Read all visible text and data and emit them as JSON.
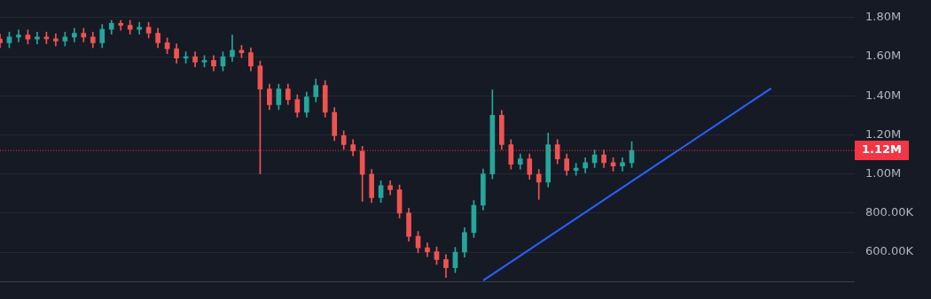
{
  "chart_data": {
    "type": "candlestick",
    "categories": [
      null,
      null,
      null,
      null,
      null,
      null,
      null,
      null,
      null,
      null,
      null,
      null,
      null,
      null,
      null,
      null,
      null,
      null,
      null,
      null,
      null,
      null,
      null,
      null,
      null,
      null,
      null,
      null,
      null,
      null,
      null,
      null,
      null,
      null,
      null,
      null,
      null,
      null,
      null,
      null,
      null,
      null,
      null,
      null,
      null,
      null,
      null,
      null,
      null,
      null,
      null,
      null,
      null,
      null,
      null,
      null,
      null,
      null,
      null,
      null,
      null,
      null,
      null,
      null,
      null,
      null,
      null,
      null,
      null,
      null,
      null,
      null,
      null,
      null,
      null,
      null,
      null,
      null,
      null,
      null,
      null,
      null,
      null,
      null,
      null,
      null,
      null,
      null,
      null,
      null,
      null,
      null,
      null
    ],
    "ohlc": [
      [
        1690000,
        1715000,
        1646000,
        1671000
      ],
      [
        1671000,
        1725000,
        1646000,
        1700000
      ],
      [
        1700000,
        1736000,
        1675000,
        1711000
      ],
      [
        1711000,
        1736000,
        1665000,
        1690000
      ],
      [
        1690000,
        1725000,
        1665000,
        1700000
      ],
      [
        1700000,
        1725000,
        1666000,
        1691000
      ],
      [
        1691000,
        1716000,
        1655000,
        1680000
      ],
      [
        1680000,
        1725000,
        1655000,
        1700000
      ],
      [
        1700000,
        1745000,
        1675000,
        1720000
      ],
      [
        1720000,
        1745000,
        1675000,
        1700000
      ],
      [
        1700000,
        1725000,
        1646000,
        1671000
      ],
      [
        1671000,
        1765000,
        1646000,
        1740000
      ],
      [
        1740000,
        1785000,
        1715000,
        1770000
      ],
      [
        1770000,
        1785000,
        1735000,
        1760000
      ],
      [
        1760000,
        1785000,
        1715000,
        1740000
      ],
      [
        1740000,
        1775000,
        1715000,
        1750000
      ],
      [
        1750000,
        1775000,
        1695000,
        1720000
      ],
      [
        1720000,
        1745000,
        1646000,
        1671000
      ],
      [
        1671000,
        1696000,
        1615000,
        1640000
      ],
      [
        1640000,
        1665000,
        1567000,
        1592000
      ],
      [
        1592000,
        1625000,
        1567000,
        1600000
      ],
      [
        1600000,
        1625000,
        1547000,
        1572000
      ],
      [
        1572000,
        1605000,
        1547000,
        1580000
      ],
      [
        1580000,
        1605000,
        1527000,
        1552000
      ],
      [
        1552000,
        1625000,
        1527000,
        1600000
      ],
      [
        1600000,
        1710000,
        1575000,
        1632000
      ],
      [
        1632000,
        1657000,
        1595000,
        1620000
      ],
      [
        1620000,
        1645000,
        1527000,
        1552000
      ],
      [
        1552000,
        1577000,
        1000000,
        1434000
      ],
      [
        1434000,
        1459000,
        1329000,
        1354000
      ],
      [
        1354000,
        1459000,
        1329000,
        1434000
      ],
      [
        1434000,
        1459000,
        1355000,
        1380000
      ],
      [
        1380000,
        1405000,
        1290000,
        1315000
      ],
      [
        1315000,
        1419000,
        1290000,
        1394000
      ],
      [
        1394000,
        1485000,
        1369000,
        1453000
      ],
      [
        1453000,
        1478000,
        1290000,
        1315000
      ],
      [
        1315000,
        1340000,
        1171000,
        1196000
      ],
      [
        1196000,
        1221000,
        1125000,
        1150000
      ],
      [
        1150000,
        1175000,
        1092000,
        1117000
      ],
      [
        1117000,
        1142000,
        860000,
        998000
      ],
      [
        998000,
        1023000,
        854000,
        879000
      ],
      [
        879000,
        965000,
        854000,
        940000
      ],
      [
        940000,
        965000,
        894000,
        919000
      ],
      [
        919000,
        944000,
        775000,
        800000
      ],
      [
        800000,
        825000,
        656000,
        681000
      ],
      [
        681000,
        706000,
        597000,
        622000
      ],
      [
        622000,
        647000,
        577000,
        602000
      ],
      [
        602000,
        627000,
        537000,
        562000
      ],
      [
        562000,
        587000,
        470000,
        520000
      ],
      [
        520000,
        625000,
        495000,
        600000
      ],
      [
        600000,
        725000,
        575000,
        700000
      ],
      [
        700000,
        865000,
        675000,
        840000
      ],
      [
        840000,
        1025000,
        815000,
        1000000
      ],
      [
        1000000,
        1430000,
        975000,
        1300000
      ],
      [
        1300000,
        1325000,
        1125000,
        1150000
      ],
      [
        1150000,
        1175000,
        1025000,
        1050000
      ],
      [
        1050000,
        1102000,
        1025000,
        1077000
      ],
      [
        1077000,
        1102000,
        973000,
        998000
      ],
      [
        998000,
        1023000,
        870000,
        958000
      ],
      [
        958000,
        1210000,
        933000,
        1150000
      ],
      [
        1150000,
        1175000,
        1052000,
        1077000
      ],
      [
        1077000,
        1102000,
        993000,
        1018000
      ],
      [
        1018000,
        1055000,
        993000,
        1030000
      ],
      [
        1030000,
        1083000,
        1005000,
        1058000
      ],
      [
        1058000,
        1122000,
        1033000,
        1097000
      ],
      [
        1097000,
        1122000,
        1033000,
        1058000
      ],
      [
        1058000,
        1083000,
        1015000,
        1040000
      ],
      [
        1040000,
        1083000,
        1015000,
        1058000
      ],
      [
        1058000,
        1165000,
        1033000,
        1120000
      ],
      null,
      null,
      null,
      null,
      null,
      null,
      null,
      null,
      null,
      null,
      null,
      null,
      null,
      null,
      null,
      null,
      null,
      null,
      null,
      null,
      null,
      null,
      null,
      null
    ],
    "series": [
      {
        "type": "line",
        "color": "#2962ff",
        "values": [
          null,
          null,
          null,
          null,
          null,
          null,
          null,
          null,
          null,
          null,
          null,
          null,
          null,
          null,
          null,
          null,
          null,
          null,
          null,
          null,
          null,
          null,
          null,
          null,
          null,
          null,
          null,
          null,
          null,
          null,
          null,
          null,
          null,
          null,
          null,
          null,
          null,
          null,
          null,
          null,
          null,
          null,
          null,
          null,
          null,
          null,
          null,
          null,
          null,
          null,
          null,
          null,
          455000,
          null,
          null,
          null,
          null,
          null,
          null,
          null,
          null,
          null,
          null,
          null,
          null,
          null,
          null,
          null,
          null,
          null,
          null,
          null,
          null,
          null,
          null,
          null,
          null,
          null,
          null,
          null,
          null,
          null,
          null,
          1438000,
          null,
          null,
          null,
          null,
          null,
          null,
          null,
          null,
          null
        ]
      }
    ],
    "ylim": [
      450000,
      1800000
    ],
    "yticks": [
      {
        "value": 600000,
        "label": "600.00K"
      },
      {
        "value": 800000,
        "label": "800.00K"
      },
      {
        "value": 1000000,
        "label": "1.00M"
      },
      {
        "value": 1200000,
        "label": "1.20M"
      },
      {
        "value": 1400000,
        "label": "1.40M"
      },
      {
        "value": 1600000,
        "label": "1.60M"
      },
      {
        "value": 1800000,
        "label": "1.80M"
      }
    ],
    "ref_lines": [
      {
        "axis": "y",
        "value": 1120000,
        "label": "1.12M",
        "color": "#f23645",
        "line_style": "dotted"
      }
    ],
    "grid": "y",
    "tick_labels": "y"
  }
}
